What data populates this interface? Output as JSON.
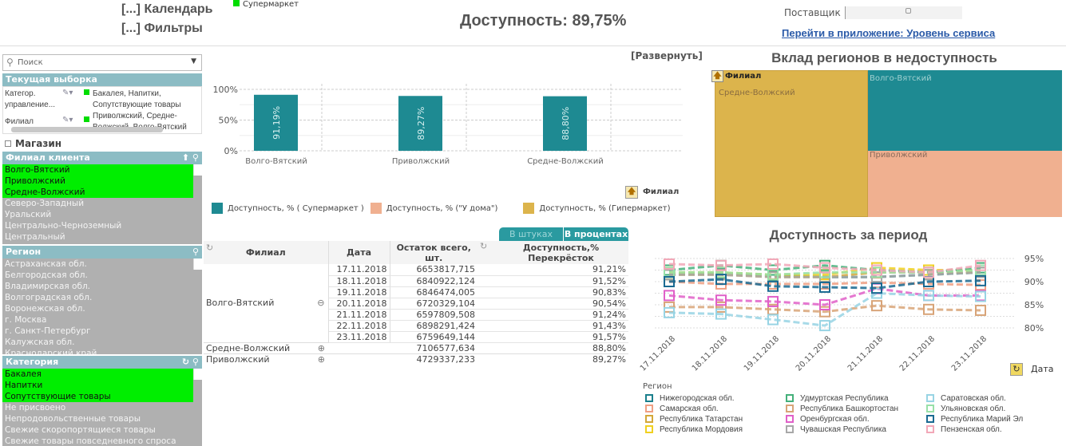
{
  "header": {
    "calendar": "[...] Календарь",
    "filters": "[...] Фильтры",
    "store_type_selection": "Супермаркет",
    "kpi": "Доступность: 89,75%",
    "supplier_label": "Поставщик",
    "app_link": "Перейти в приложение:  Уровень сервиса"
  },
  "sidebar": {
    "search_placeholder": "Поиск",
    "current_selection": {
      "title": "Текущая выборка",
      "rows": [
        {
          "field": "Категор. управление...",
          "value": "Бакалея, Напитки, Сопутствующие товары"
        },
        {
          "field": "Филиал",
          "value": "Приволжский, Средне-Волжский, Волго-Вятский"
        }
      ]
    },
    "store_checkbox": "Магазин",
    "branch": {
      "title": "Филиал клиента",
      "items": [
        {
          "label": "Волго-Вятский",
          "selected": true
        },
        {
          "label": "Приволжский",
          "selected": true
        },
        {
          "label": "Средне-Волжский",
          "selected": true
        },
        {
          "label": "Северо-Западный",
          "selected": false
        },
        {
          "label": "Уральский",
          "selected": false
        },
        {
          "label": "Центрально-Черноземный",
          "selected": false
        },
        {
          "label": "Центральный",
          "selected": false
        }
      ]
    },
    "region": {
      "title": "Регион",
      "items": [
        "Астраханская обл.",
        "Белгородская обл.",
        "Владимирская обл.",
        "Волгоградская обл.",
        "Воронежская обл.",
        "г. Москва",
        "г. Санкт-Петербург",
        "Калужская обл.",
        "Краснодарский край"
      ]
    },
    "category": {
      "title": "Категория",
      "items": [
        {
          "label": "Бакалея",
          "selected": true
        },
        {
          "label": "Напитки",
          "selected": true
        },
        {
          "label": "Сопутствующие товары",
          "selected": true
        },
        {
          "label": "Не присвоено",
          "selected": false
        },
        {
          "label": "Непродовольственные товары",
          "selected": false
        },
        {
          "label": "Свежие скоропортящиеся товары",
          "selected": false
        },
        {
          "label": "Свежие товары повседневного спроса",
          "selected": false
        }
      ]
    }
  },
  "bar_panel": {
    "expand": "[Развернуть]",
    "dim_label": "Филиал"
  },
  "chart_data": [
    {
      "type": "bar",
      "categories": [
        "Волго-Вятский",
        "Приволжский",
        "Средне-Волжский"
      ],
      "series": [
        {
          "name": "Доступность, % ( Супермаркет )",
          "values": [
            91.19,
            89.27,
            88.8
          ],
          "labels": [
            "91,19%",
            "89,27%",
            "88,80%"
          ],
          "color": "#1e8a92"
        },
        {
          "name": "Доступность, % (\"У дома\")",
          "values": [
            null,
            null,
            null
          ],
          "color": "#f0b090"
        },
        {
          "name": "Доступность, % (Гипермаркет)",
          "values": [
            null,
            null,
            null
          ],
          "color": "#dcb44c"
        }
      ],
      "yticks": [
        "0%",
        "50%",
        "100%"
      ],
      "ylim": [
        0,
        100
      ],
      "legend": "bottom",
      "grid": true
    },
    {
      "type": "treemap",
      "title": "Вклад регионов в недоступность",
      "dim_label": "Филиал",
      "items": [
        {
          "label": "Средне-Волжский",
          "color": "#dcb44c"
        },
        {
          "label": "Волго-Вятский",
          "color": "#1e8a92"
        },
        {
          "label": "Приволжский",
          "color": "#f0b090"
        }
      ]
    },
    {
      "type": "line",
      "title": "Доступность за период",
      "x": [
        "17.11.2018",
        "18.11.2018",
        "19.11.2018",
        "20.11.2018",
        "21.11.2018",
        "22.11.2018",
        "23.11.2018"
      ],
      "xlabel": "Дата",
      "legend_title": "Регион",
      "yticks": [
        "80%",
        "85%",
        "90%",
        "95%"
      ],
      "ylim": [
        79,
        96
      ],
      "grid": true,
      "legend": "bottom",
      "series": [
        {
          "name": "Нижегородская обл.",
          "color": "#1a7f8c",
          "values": [
            91.5,
            91.8,
            91.3,
            91,
            91,
            91.5,
            92
          ]
        },
        {
          "name": "Самарская обл.",
          "color": "#ef9f82",
          "values": [
            90,
            89.5,
            89.5,
            89.5,
            89.8,
            89.5,
            89.3
          ]
        },
        {
          "name": "Республика Татарстан",
          "color": "#d4a838",
          "values": [
            91.5,
            91.5,
            91,
            91,
            92,
            92,
            92
          ]
        },
        {
          "name": "Республика Мордовия",
          "color": "#f0d020",
          "values": [
            92,
            92,
            91.5,
            91.5,
            93,
            92.5,
            92.5
          ]
        },
        {
          "name": "Удмуртская Республика",
          "color": "#44b07a",
          "values": [
            92.5,
            93.5,
            92.5,
            93.5,
            92.5,
            92,
            93
          ]
        },
        {
          "name": "Республика Башкортостан",
          "color": "#d8a478",
          "values": [
            84.5,
            84.5,
            84,
            83.5,
            84.8,
            84,
            83.8
          ]
        },
        {
          "name": "Оренбургская обл.",
          "color": "#e060c8",
          "values": [
            87,
            86,
            85.7,
            85,
            88.5,
            87,
            87
          ]
        },
        {
          "name": "Чувашская Республика",
          "color": "#a8a8a8",
          "values": [
            91.5,
            91.5,
            91,
            91,
            91,
            91.5,
            92
          ]
        },
        {
          "name": "Саратовская обл.",
          "color": "#98d4e4",
          "values": [
            83.3,
            83,
            81.8,
            80.5,
            87.5,
            87,
            86.8
          ]
        },
        {
          "name": "Ульяновская обл.",
          "color": "#98e0a8",
          "values": [
            92,
            92,
            91.5,
            92,
            92,
            92,
            92.5
          ]
        },
        {
          "name": "Республика Марий Эл",
          "color": "#1a6a92",
          "values": [
            90,
            90.5,
            89,
            88.8,
            88.6,
            90,
            90.2
          ]
        },
        {
          "name": "Пензенская обл.",
          "color": "#f2a8b8",
          "values": [
            93.8,
            93.5,
            93.8,
            93,
            92.5,
            92,
            93.5
          ]
        }
      ]
    }
  ],
  "table": {
    "tabs": [
      "В штуках",
      "В процентах"
    ],
    "active_tab": "В процентах",
    "columns": [
      "Филиал",
      "Дата",
      "Остаток всего, шт.",
      "Доступность,% Перекрёсток"
    ],
    "group": "Волго-Вятский",
    "rows": [
      [
        "17.11.2018",
        "6653817,715",
        "91,21%"
      ],
      [
        "18.11.2018",
        "6840922,124",
        "91,52%"
      ],
      [
        "19.11.2018",
        "6846474,005",
        "90,83%"
      ],
      [
        "20.11.2018",
        "6720329,104",
        "90,54%"
      ],
      [
        "21.11.2018",
        "6597809,508",
        "91,24%"
      ],
      [
        "22.11.2018",
        "6898291,424",
        "91,43%"
      ],
      [
        "23.11.2018",
        "6759649,144",
        "91,57%"
      ]
    ],
    "collapsed": [
      [
        "Средне-Волжский",
        "7106577,634",
        "88,80%"
      ],
      [
        "Приволжский",
        "4729337,233",
        "89,27%"
      ]
    ]
  }
}
